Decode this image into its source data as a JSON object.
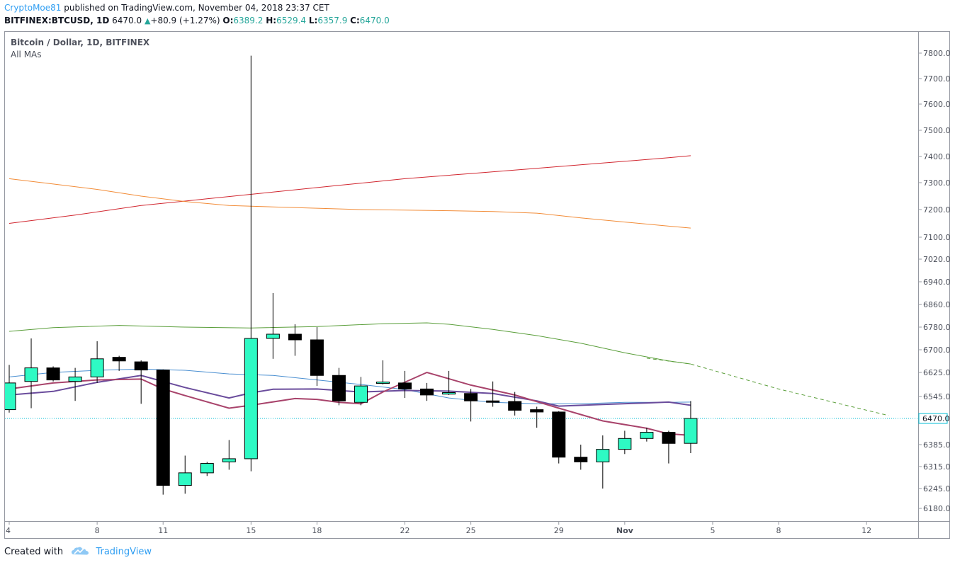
{
  "header": {
    "author": "CryptoMoe81",
    "published": " published on TradingView.com, November 04, 2018 23:37 CET",
    "symbol": "BITFINEX:BTCUSD, 1D",
    "last": "6470.0",
    "change_arrow": "▲",
    "change": "+80.9 (+1.27%)",
    "o_label": "O:",
    "o": "6389.2",
    "h_label": "H:",
    "h": "6529.4",
    "l_label": "L:",
    "l": "6357.9",
    "c_label": "C:",
    "c": "6470.0"
  },
  "legend": {
    "title": "Bitcoin / Dollar, 1D, BITFINEX",
    "subtitle": "All MAs"
  },
  "footer": {
    "created_with": "Created with",
    "brand": "TradingView",
    "logo_icon": "tradingview-logo-icon"
  },
  "colors": {
    "up": "#2efac4",
    "down": "#000000",
    "ma_red": "#d1262f",
    "ma_orange": "#f28c38",
    "ma_green": "#5a9e3a",
    "ma_blue": "#4a8fd1",
    "ma_purple": "#6a4c9c",
    "ma_magenta": "#a8436b",
    "last_line": "#00bcd4"
  },
  "chart_data": {
    "type": "candlestick",
    "title": "Bitcoin / Dollar, 1D, BITFINEX",
    "ylim": [
      6130,
      7860
    ],
    "y_ticks": [
      "7800.0",
      "7700.0",
      "7600.0",
      "7500.0",
      "7400.0",
      "7300.0",
      "7200.0",
      "7100.0",
      "7020.0",
      "6940.0",
      "6860.0",
      "6780.0",
      "6700.0",
      "6625.0",
      "6545.0",
      "6470.0",
      "6385.0",
      "6315.0",
      "6245.0",
      "6180.0"
    ],
    "last_price_label": "6470.0",
    "x_ticks": [
      {
        "label": "4",
        "day": 0
      },
      {
        "label": "8",
        "day": 4
      },
      {
        "label": "11",
        "day": 7
      },
      {
        "label": "15",
        "day": 11
      },
      {
        "label": "18",
        "day": 14
      },
      {
        "label": "22",
        "day": 18
      },
      {
        "label": "25",
        "day": 21
      },
      {
        "label": "29",
        "day": 25
      },
      {
        "label": "Nov",
        "day": 28
      },
      {
        "label": "5",
        "day": 32
      },
      {
        "label": "8",
        "day": 35
      },
      {
        "label": "12",
        "day": 39
      }
    ],
    "candles": [
      {
        "date": "Oct 04",
        "o": 6500,
        "h": 6650,
        "l": 6490,
        "c": 6590
      },
      {
        "date": "Oct 05",
        "o": 6595,
        "h": 6740,
        "l": 6505,
        "c": 6640
      },
      {
        "date": "Oct 06",
        "o": 6640,
        "h": 6645,
        "l": 6595,
        "c": 6600
      },
      {
        "date": "Oct 07",
        "o": 6595,
        "h": 6640,
        "l": 6530,
        "c": 6610
      },
      {
        "date": "Oct 08",
        "o": 6610,
        "h": 6730,
        "l": 6590,
        "c": 6670
      },
      {
        "date": "Oct 09",
        "o": 6675,
        "h": 6680,
        "l": 6630,
        "c": 6663
      },
      {
        "date": "Oct 10",
        "o": 6660,
        "h": 6665,
        "l": 6520,
        "c": 6633
      },
      {
        "date": "Oct 11",
        "o": 6633,
        "h": 6635,
        "l": 6225,
        "c": 6255
      },
      {
        "date": "Oct 12",
        "o": 6255,
        "h": 6350,
        "l": 6228,
        "c": 6295
      },
      {
        "date": "Oct 13",
        "o": 6295,
        "h": 6330,
        "l": 6285,
        "c": 6325
      },
      {
        "date": "Oct 14",
        "o": 6330,
        "h": 6400,
        "l": 6305,
        "c": 6340
      },
      {
        "date": "Oct 15",
        "o": 6340,
        "h": 7790,
        "l": 6300,
        "c": 6740
      },
      {
        "date": "Oct 16",
        "o": 6740,
        "h": 6900,
        "l": 6670,
        "c": 6755
      },
      {
        "date": "Oct 17",
        "o": 6755,
        "h": 6790,
        "l": 6680,
        "c": 6735
      },
      {
        "date": "Oct 18",
        "o": 6735,
        "h": 6780,
        "l": 6580,
        "c": 6615
      },
      {
        "date": "Oct 19",
        "o": 6615,
        "h": 6640,
        "l": 6515,
        "c": 6530
      },
      {
        "date": "Oct 20",
        "o": 6525,
        "h": 6610,
        "l": 6515,
        "c": 6580
      },
      {
        "date": "Oct 21",
        "o": 6590,
        "h": 6665,
        "l": 6585,
        "c": 6593
      },
      {
        "date": "Oct 22",
        "o": 6590,
        "h": 6630,
        "l": 6540,
        "c": 6570
      },
      {
        "date": "Oct 23",
        "o": 6570,
        "h": 6590,
        "l": 6530,
        "c": 6550
      },
      {
        "date": "Oct 24",
        "o": 6553,
        "h": 6630,
        "l": 6550,
        "c": 6558
      },
      {
        "date": "Oct 25",
        "o": 6555,
        "h": 6570,
        "l": 6460,
        "c": 6530
      },
      {
        "date": "Oct 26",
        "o": 6530,
        "h": 6595,
        "l": 6510,
        "c": 6528
      },
      {
        "date": "Oct 27",
        "o": 6528,
        "h": 6560,
        "l": 6480,
        "c": 6498
      },
      {
        "date": "Oct 28",
        "o": 6500,
        "h": 6510,
        "l": 6440,
        "c": 6492
      },
      {
        "date": "Oct 29",
        "o": 6492,
        "h": 6495,
        "l": 6325,
        "c": 6345
      },
      {
        "date": "Oct 30",
        "o": 6345,
        "h": 6385,
        "l": 6305,
        "c": 6330
      },
      {
        "date": "Oct 31",
        "o": 6330,
        "h": 6415,
        "l": 6245,
        "c": 6370
      },
      {
        "date": "Nov 01",
        "o": 6370,
        "h": 6430,
        "l": 6355,
        "c": 6405
      },
      {
        "date": "Nov 02",
        "o": 6405,
        "h": 6440,
        "l": 6395,
        "c": 6425
      },
      {
        "date": "Nov 03",
        "o": 6425,
        "h": 6430,
        "l": 6325,
        "c": 6389
      },
      {
        "date": "Nov 04",
        "o": 6389.2,
        "h": 6529.4,
        "l": 6357.9,
        "c": 6470.0
      }
    ],
    "moving_averages": [
      {
        "color_key": "ma_red",
        "points": [
          [
            0,
            7150
          ],
          [
            3,
            7180
          ],
          [
            6,
            7215
          ],
          [
            9,
            7240
          ],
          [
            12,
            7265
          ],
          [
            15,
            7290
          ],
          [
            18,
            7315
          ],
          [
            21,
            7335
          ],
          [
            24,
            7355
          ],
          [
            27,
            7375
          ],
          [
            30,
            7395
          ],
          [
            31,
            7403
          ]
        ]
      },
      {
        "color_key": "ma_orange",
        "points": [
          [
            0,
            7315
          ],
          [
            2,
            7295
          ],
          [
            4,
            7275
          ],
          [
            6,
            7250
          ],
          [
            8,
            7230
          ],
          [
            10,
            7215
          ],
          [
            12,
            7210
          ],
          [
            14,
            7205
          ],
          [
            16,
            7200
          ],
          [
            18,
            7198
          ],
          [
            20,
            7196
          ],
          [
            22,
            7193
          ],
          [
            24,
            7187
          ],
          [
            26,
            7170
          ],
          [
            28,
            7155
          ],
          [
            30,
            7140
          ],
          [
            31,
            7133
          ]
        ]
      },
      {
        "color_key": "ma_green",
        "points": [
          [
            0,
            6765
          ],
          [
            2,
            6778
          ],
          [
            5,
            6786
          ],
          [
            8,
            6780
          ],
          [
            11,
            6777
          ],
          [
            14,
            6782
          ],
          [
            17,
            6792
          ],
          [
            19,
            6795
          ],
          [
            20,
            6790
          ],
          [
            22,
            6772
          ],
          [
            24,
            6750
          ],
          [
            26,
            6723
          ],
          [
            28,
            6690
          ],
          [
            30,
            6663
          ],
          [
            31,
            6653
          ]
        ]
      },
      {
        "color_key": "ma_blue",
        "points": [
          [
            0,
            6610
          ],
          [
            2,
            6625
          ],
          [
            4,
            6632
          ],
          [
            6,
            6636
          ],
          [
            8,
            6632
          ],
          [
            10,
            6620
          ],
          [
            12,
            6615
          ],
          [
            14,
            6600
          ],
          [
            16,
            6585
          ],
          [
            18,
            6568
          ],
          [
            20,
            6540
          ],
          [
            22,
            6525
          ],
          [
            24,
            6520
          ],
          [
            26,
            6520
          ],
          [
            28,
            6525
          ],
          [
            30,
            6525
          ],
          [
            31,
            6526
          ]
        ]
      },
      {
        "color_key": "ma_purple",
        "points": [
          [
            0,
            6550
          ],
          [
            2,
            6562
          ],
          [
            4,
            6592
          ],
          [
            6,
            6615
          ],
          [
            8,
            6575
          ],
          [
            10,
            6540
          ],
          [
            11,
            6557
          ],
          [
            12,
            6569
          ],
          [
            14,
            6570
          ],
          [
            16,
            6560
          ],
          [
            18,
            6565
          ],
          [
            20,
            6563
          ],
          [
            22,
            6555
          ],
          [
            24,
            6530
          ],
          [
            25,
            6512
          ],
          [
            27,
            6518
          ],
          [
            29,
            6523
          ],
          [
            30,
            6526
          ],
          [
            31,
            6515
          ]
        ]
      },
      {
        "color_key": "ma_magenta",
        "points": [
          [
            0,
            6570
          ],
          [
            2,
            6590
          ],
          [
            4,
            6600
          ],
          [
            6,
            6603
          ],
          [
            7,
            6570
          ],
          [
            8,
            6548
          ],
          [
            10,
            6505
          ],
          [
            11,
            6515
          ],
          [
            13,
            6538
          ],
          [
            14,
            6535
          ],
          [
            15,
            6525
          ],
          [
            16,
            6520
          ],
          [
            17,
            6560
          ],
          [
            19,
            6625
          ],
          [
            21,
            6583
          ],
          [
            23,
            6550
          ],
          [
            25,
            6505
          ],
          [
            27,
            6462
          ],
          [
            29,
            6438
          ],
          [
            30,
            6420
          ],
          [
            31,
            6415
          ]
        ]
      }
    ],
    "projection": {
      "color_key": "ma_green",
      "points": [
        [
          29,
          6672
        ],
        [
          31,
          6653
        ],
        [
          35,
          6570
        ],
        [
          40,
          6480
        ]
      ]
    }
  }
}
